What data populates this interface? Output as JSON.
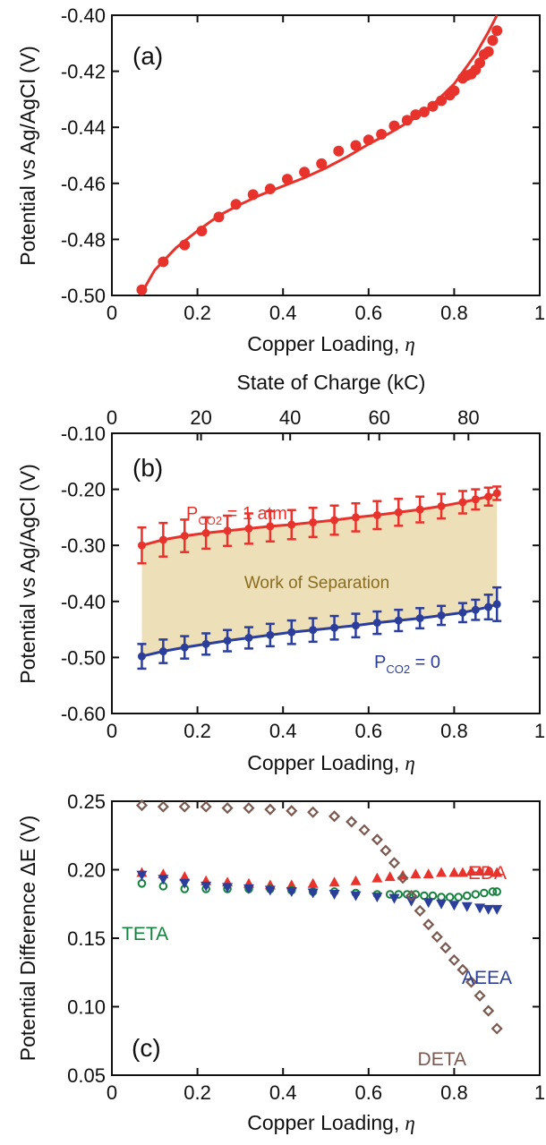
{
  "figure": {
    "panels": [
      {
        "label": "(a)",
        "xlabel": "Copper Loading,",
        "xlabel_symbol": "η",
        "ylabel": "Potential vs Ag/AgCl (V)"
      },
      {
        "label": "(b)",
        "xlabel": "Copper Loading,",
        "xlabel_symbol": "η",
        "ylabel": "Potential vs Ag/AgCl (V)",
        "top_xlabel": "State of Charge (kC)",
        "annotations": {
          "p1_main": "P",
          "p1_sub": "CO2",
          "p1_rest": " = 1 atm",
          "p0_main": "P",
          "p0_sub": "CO2",
          "p0_rest": " = 0",
          "band": "Work of Separation"
        }
      },
      {
        "label": "(c)",
        "xlabel": "Copper Loading,",
        "xlabel_symbol": "η",
        "ylabel": "Potential Difference ΔE (V)",
        "series_labels": [
          "EDA",
          "TETA",
          "AEEA",
          "DETA"
        ]
      }
    ]
  },
  "chart_data": [
    {
      "type": "scatter",
      "title": "",
      "xlabel": "Copper Loading, η",
      "ylabel": "Potential vs Ag/AgCl (V)",
      "xlim": [
        0,
        1
      ],
      "ylim": [
        -0.5,
        -0.4
      ],
      "xticks": [
        "0",
        "0.2",
        "0.4",
        "0.6",
        "0.8",
        "1"
      ],
      "yticks": [
        "-0.50",
        "-0.48",
        "-0.46",
        "-0.44",
        "-0.42",
        "-0.40"
      ],
      "color": "#e8322c",
      "series": [
        {
          "kind": "points",
          "x": [
            0.07,
            0.12,
            0.17,
            0.21,
            0.25,
            0.29,
            0.33,
            0.37,
            0.41,
            0.45,
            0.49,
            0.53,
            0.57,
            0.6,
            0.63,
            0.66,
            0.69,
            0.71,
            0.73,
            0.75,
            0.77,
            0.79,
            0.8,
            0.82,
            0.83,
            0.84,
            0.85,
            0.86,
            0.87,
            0.88,
            0.89,
            0.9
          ],
          "y": [
            -0.498,
            -0.488,
            -0.482,
            -0.477,
            -0.472,
            -0.4675,
            -0.464,
            -0.462,
            -0.4585,
            -0.456,
            -0.453,
            -0.4485,
            -0.4465,
            -0.4445,
            -0.4425,
            -0.4395,
            -0.4375,
            -0.4355,
            -0.4345,
            -0.4325,
            -0.4305,
            -0.4285,
            -0.427,
            -0.4225,
            -0.4215,
            -0.421,
            -0.4195,
            -0.417,
            -0.414,
            -0.413,
            -0.409,
            -0.4055
          ]
        },
        {
          "kind": "fit",
          "x": [
            0.07,
            0.1,
            0.15,
            0.2,
            0.25,
            0.3,
            0.35,
            0.4,
            0.45,
            0.5,
            0.55,
            0.6,
            0.65,
            0.7,
            0.75,
            0.8,
            0.85,
            0.88,
            0.9
          ],
          "y": [
            -0.499,
            -0.491,
            -0.483,
            -0.477,
            -0.4715,
            -0.4675,
            -0.464,
            -0.461,
            -0.458,
            -0.4545,
            -0.4505,
            -0.446,
            -0.442,
            -0.4375,
            -0.432,
            -0.4245,
            -0.414,
            -0.406,
            -0.4
          ]
        }
      ]
    },
    {
      "type": "line",
      "title": "",
      "xlabel": "Copper Loading, η",
      "top_xlabel": "State of Charge (kC)",
      "ylabel": "Potential vs Ag/AgCl (V)",
      "xlim": [
        0,
        1
      ],
      "ylim": [
        -0.6,
        -0.1
      ],
      "top_xlim": [
        0,
        96
      ],
      "xticks": [
        "0",
        "0.2",
        "0.4",
        "0.6",
        "0.8",
        "1"
      ],
      "top_xticks": [
        "20",
        "40",
        "60",
        "80"
      ],
      "yticks": [
        "-0.60",
        "-0.50",
        "-0.40",
        "-0.30",
        "-0.20",
        "-0.10"
      ],
      "fill_color": "#eddfb7",
      "x": [
        0.07,
        0.12,
        0.17,
        0.22,
        0.27,
        0.32,
        0.37,
        0.42,
        0.47,
        0.52,
        0.57,
        0.62,
        0.67,
        0.72,
        0.77,
        0.82,
        0.85,
        0.88,
        0.9
      ],
      "series": [
        {
          "name": "P CO2 = 1 atm",
          "color": "#e8322c",
          "y": [
            -0.3,
            -0.29,
            -0.283,
            -0.278,
            -0.274,
            -0.27,
            -0.266,
            -0.263,
            -0.259,
            -0.255,
            -0.25,
            -0.246,
            -0.241,
            -0.236,
            -0.23,
            -0.223,
            -0.218,
            -0.213,
            -0.207
          ],
          "err": [
            0.032,
            0.03,
            0.029,
            0.028,
            0.027,
            0.027,
            0.027,
            0.026,
            0.026,
            0.026,
            0.025,
            0.025,
            0.024,
            0.023,
            0.022,
            0.02,
            0.018,
            0.016,
            0.012
          ]
        },
        {
          "name": "P CO2 = 0",
          "color": "#2b3e9b",
          "y": [
            -0.498,
            -0.489,
            -0.482,
            -0.476,
            -0.47,
            -0.465,
            -0.46,
            -0.455,
            -0.451,
            -0.447,
            -0.443,
            -0.438,
            -0.434,
            -0.43,
            -0.425,
            -0.42,
            -0.415,
            -0.41,
            -0.405
          ],
          "err": [
            0.022,
            0.021,
            0.02,
            0.019,
            0.019,
            0.019,
            0.02,
            0.021,
            0.021,
            0.021,
            0.021,
            0.02,
            0.019,
            0.018,
            0.017,
            0.017,
            0.018,
            0.022,
            0.03
          ]
        }
      ]
    },
    {
      "type": "scatter",
      "title": "",
      "xlabel": "Copper Loading, η",
      "ylabel": "Potential Difference ΔE (V)",
      "xlim": [
        0,
        1
      ],
      "ylim": [
        0.05,
        0.25
      ],
      "xticks": [
        "0",
        "0.2",
        "0.4",
        "0.6",
        "0.8",
        "1"
      ],
      "yticks": [
        "0.05",
        "0.10",
        "0.15",
        "0.20",
        "0.25"
      ],
      "series": [
        {
          "name": "EDA",
          "marker": "triangle-up",
          "color": "#e8322c",
          "x": [
            0.07,
            0.12,
            0.17,
            0.22,
            0.27,
            0.32,
            0.37,
            0.42,
            0.47,
            0.52,
            0.57,
            0.62,
            0.65,
            0.68,
            0.71,
            0.74,
            0.77,
            0.8,
            0.82,
            0.84,
            0.86,
            0.88,
            0.9
          ],
          "y": [
            0.198,
            0.197,
            0.195,
            0.192,
            0.191,
            0.19,
            0.189,
            0.189,
            0.19,
            0.191,
            0.192,
            0.194,
            0.195,
            0.196,
            0.197,
            0.197,
            0.198,
            0.198,
            0.198,
            0.199,
            0.199,
            0.199,
            0.198
          ]
        },
        {
          "name": "TETA",
          "marker": "circle-open",
          "color": "#14823e",
          "x": [
            0.07,
            0.12,
            0.17,
            0.22,
            0.27,
            0.32,
            0.37,
            0.42,
            0.47,
            0.52,
            0.57,
            0.62,
            0.65,
            0.67,
            0.69,
            0.71,
            0.73,
            0.75,
            0.77,
            0.79,
            0.81,
            0.83,
            0.85,
            0.87,
            0.89,
            0.9
          ],
          "y": [
            0.19,
            0.188,
            0.186,
            0.186,
            0.186,
            0.186,
            0.186,
            0.185,
            0.184,
            0.184,
            0.183,
            0.182,
            0.182,
            0.182,
            0.182,
            0.182,
            0.181,
            0.181,
            0.18,
            0.18,
            0.18,
            0.181,
            0.182,
            0.183,
            0.184,
            0.184
          ]
        },
        {
          "name": "AEEA",
          "marker": "triangle-down",
          "color": "#2b3e9b",
          "x": [
            0.07,
            0.12,
            0.17,
            0.22,
            0.27,
            0.32,
            0.37,
            0.42,
            0.47,
            0.52,
            0.57,
            0.62,
            0.66,
            0.7,
            0.74,
            0.77,
            0.8,
            0.83,
            0.86,
            0.88,
            0.9
          ],
          "y": [
            0.196,
            0.193,
            0.19,
            0.188,
            0.187,
            0.186,
            0.185,
            0.184,
            0.183,
            0.182,
            0.181,
            0.18,
            0.179,
            0.177,
            0.176,
            0.175,
            0.174,
            0.173,
            0.172,
            0.171,
            0.171
          ]
        },
        {
          "name": "DETA",
          "marker": "diamond-open",
          "color": "#7a5a50",
          "x": [
            0.07,
            0.12,
            0.17,
            0.22,
            0.27,
            0.32,
            0.37,
            0.42,
            0.47,
            0.52,
            0.56,
            0.59,
            0.62,
            0.64,
            0.66,
            0.68,
            0.7,
            0.72,
            0.74,
            0.76,
            0.78,
            0.8,
            0.82,
            0.84,
            0.86,
            0.88,
            0.9
          ],
          "y": [
            0.247,
            0.246,
            0.246,
            0.246,
            0.245,
            0.245,
            0.244,
            0.243,
            0.242,
            0.239,
            0.235,
            0.229,
            0.222,
            0.214,
            0.205,
            0.194,
            0.181,
            0.17,
            0.16,
            0.151,
            0.143,
            0.134,
            0.127,
            0.118,
            0.108,
            0.097,
            0.084
          ]
        }
      ]
    }
  ]
}
